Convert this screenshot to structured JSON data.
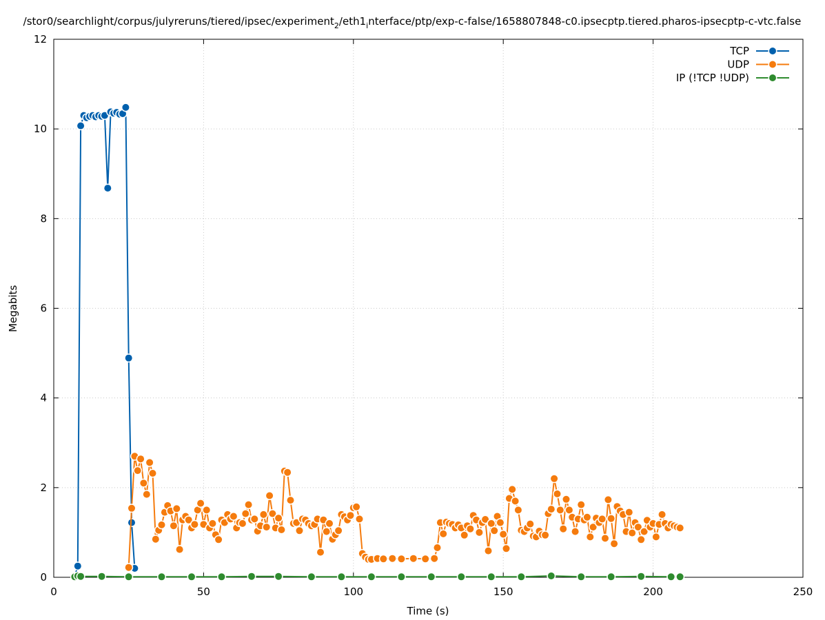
{
  "chart_data": {
    "type": "line",
    "title": "/stor0/searchlight/corpus/julyreruns/tiered/ipsec/experiment",
    "title_sub1": "2",
    "title_mid": "/eth1",
    "title_sub2": "i",
    "title_end": "nterface/ptp/exp-c-false/1658807848-c0.ipsecptp.tiered.pharos-ipsecptp-c-vtc.false",
    "xlabel": "Time (s)",
    "ylabel": "Megabits",
    "xlim": [
      0,
      250
    ],
    "ylim": [
      0,
      12
    ],
    "xticks": [
      0,
      50,
      100,
      150,
      200,
      250
    ],
    "yticks": [
      0,
      2,
      4,
      6,
      8,
      10,
      12
    ],
    "grid": true,
    "legend_position": "top-right",
    "series": [
      {
        "name": "TCP",
        "color": "#0060ad",
        "points": [
          [
            7,
            0.02
          ],
          [
            8,
            0.25
          ],
          [
            9,
            10.07
          ],
          [
            10,
            10.3
          ],
          [
            11,
            10.25
          ],
          [
            12,
            10.28
          ],
          [
            13,
            10.3
          ],
          [
            14,
            10.27
          ],
          [
            15,
            10.3
          ],
          [
            16,
            10.28
          ],
          [
            17,
            10.3
          ],
          [
            18,
            8.68
          ],
          [
            19,
            10.38
          ],
          [
            20,
            10.35
          ],
          [
            21,
            10.37
          ],
          [
            22,
            10.33
          ],
          [
            23,
            10.34
          ],
          [
            24,
            10.48
          ],
          [
            25,
            4.89
          ],
          [
            26,
            1.22
          ],
          [
            27,
            0.2
          ]
        ]
      },
      {
        "name": "UDP",
        "color": "#f57b0d",
        "points": [
          [
            25,
            0.22
          ],
          [
            26,
            1.54
          ],
          [
            27,
            2.7
          ],
          [
            28,
            2.38
          ],
          [
            29,
            2.64
          ],
          [
            30,
            2.1
          ],
          [
            31,
            1.85
          ],
          [
            32,
            2.56
          ],
          [
            33,
            2.32
          ],
          [
            34,
            0.85
          ],
          [
            35,
            1.05
          ],
          [
            36,
            1.17
          ],
          [
            37,
            1.45
          ],
          [
            38,
            1.6
          ],
          [
            39,
            1.48
          ],
          [
            40,
            1.15
          ],
          [
            41,
            1.53
          ],
          [
            42,
            0.62
          ],
          [
            43,
            1.28
          ],
          [
            44,
            1.36
          ],
          [
            45,
            1.28
          ],
          [
            46,
            1.1
          ],
          [
            47,
            1.18
          ],
          [
            48,
            1.5
          ],
          [
            49,
            1.65
          ],
          [
            50,
            1.18
          ],
          [
            51,
            1.5
          ],
          [
            52,
            1.1
          ],
          [
            53,
            1.2
          ],
          [
            54,
            0.95
          ],
          [
            55,
            0.84
          ],
          [
            56,
            1.28
          ],
          [
            57,
            1.22
          ],
          [
            58,
            1.4
          ],
          [
            59,
            1.3
          ],
          [
            60,
            1.36
          ],
          [
            61,
            1.1
          ],
          [
            62,
            1.22
          ],
          [
            63,
            1.2
          ],
          [
            64,
            1.42
          ],
          [
            65,
            1.62
          ],
          [
            66,
            1.28
          ],
          [
            67,
            1.3
          ],
          [
            68,
            1.03
          ],
          [
            69,
            1.15
          ],
          [
            70,
            1.4
          ],
          [
            71,
            1.12
          ],
          [
            72,
            1.82
          ],
          [
            73,
            1.42
          ],
          [
            74,
            1.1
          ],
          [
            75,
            1.32
          ],
          [
            76,
            1.06
          ],
          [
            77,
            2.37
          ],
          [
            78,
            2.34
          ],
          [
            79,
            1.72
          ],
          [
            80,
            1.2
          ],
          [
            81,
            1.22
          ],
          [
            82,
            1.04
          ],
          [
            83,
            1.3
          ],
          [
            84,
            1.28
          ],
          [
            85,
            1.2
          ],
          [
            86,
            1.15
          ],
          [
            87,
            1.18
          ],
          [
            88,
            1.3
          ],
          [
            89,
            0.56
          ],
          [
            90,
            1.28
          ],
          [
            91,
            1.02
          ],
          [
            92,
            1.2
          ],
          [
            93,
            0.85
          ],
          [
            94,
            0.95
          ],
          [
            95,
            1.04
          ],
          [
            96,
            1.4
          ],
          [
            97,
            1.35
          ],
          [
            98,
            1.28
          ],
          [
            99,
            1.38
          ],
          [
            100,
            1.55
          ],
          [
            101,
            1.57
          ],
          [
            102,
            1.3
          ],
          [
            103,
            0.53
          ],
          [
            104,
            0.45
          ],
          [
            105,
            0.4
          ],
          [
            106,
            0.4
          ],
          [
            108,
            0.42
          ],
          [
            110,
            0.41
          ],
          [
            113,
            0.42
          ],
          [
            116,
            0.41
          ],
          [
            120,
            0.42
          ],
          [
            124,
            0.41
          ],
          [
            127,
            0.42
          ],
          [
            128,
            0.66
          ],
          [
            129,
            1.22
          ],
          [
            130,
            0.97
          ],
          [
            131,
            1.23
          ],
          [
            132,
            1.2
          ],
          [
            133,
            1.18
          ],
          [
            134,
            1.1
          ],
          [
            135,
            1.17
          ],
          [
            136,
            1.1
          ],
          [
            137,
            0.94
          ],
          [
            138,
            1.15
          ],
          [
            139,
            1.08
          ],
          [
            140,
            1.38
          ],
          [
            141,
            1.28
          ],
          [
            142,
            1.0
          ],
          [
            143,
            1.22
          ],
          [
            144,
            1.29
          ],
          [
            145,
            0.59
          ],
          [
            146,
            1.2
          ],
          [
            147,
            1.04
          ],
          [
            148,
            1.36
          ],
          [
            149,
            1.22
          ],
          [
            150,
            0.96
          ],
          [
            151,
            0.64
          ],
          [
            152,
            1.76
          ],
          [
            153,
            1.96
          ],
          [
            154,
            1.7
          ],
          [
            155,
            1.5
          ],
          [
            156,
            1.05
          ],
          [
            157,
            1.02
          ],
          [
            158,
            1.1
          ],
          [
            159,
            1.19
          ],
          [
            160,
            0.92
          ],
          [
            161,
            0.9
          ],
          [
            162,
            1.03
          ],
          [
            163,
            0.95
          ],
          [
            164,
            0.94
          ],
          [
            165,
            1.42
          ],
          [
            166,
            1.52
          ],
          [
            167,
            2.2
          ],
          [
            168,
            1.86
          ],
          [
            169,
            1.5
          ],
          [
            170,
            1.08
          ],
          [
            171,
            1.74
          ],
          [
            172,
            1.5
          ],
          [
            173,
            1.34
          ],
          [
            174,
            1.02
          ],
          [
            175,
            1.3
          ],
          [
            176,
            1.62
          ],
          [
            177,
            1.28
          ],
          [
            178,
            1.34
          ],
          [
            179,
            0.9
          ],
          [
            180,
            1.12
          ],
          [
            181,
            1.32
          ],
          [
            182,
            1.22
          ],
          [
            183,
            1.3
          ],
          [
            184,
            0.87
          ],
          [
            185,
            1.73
          ],
          [
            186,
            1.31
          ],
          [
            187,
            0.75
          ],
          [
            188,
            1.58
          ],
          [
            189,
            1.48
          ],
          [
            190,
            1.4
          ],
          [
            191,
            1.02
          ],
          [
            192,
            1.45
          ],
          [
            193,
            0.99
          ],
          [
            194,
            1.22
          ],
          [
            195,
            1.12
          ],
          [
            196,
            0.84
          ],
          [
            197,
            1.02
          ],
          [
            198,
            1.27
          ],
          [
            199,
            1.12
          ],
          [
            200,
            1.2
          ],
          [
            201,
            0.9
          ],
          [
            202,
            1.18
          ],
          [
            203,
            1.4
          ],
          [
            204,
            1.2
          ],
          [
            205,
            1.1
          ],
          [
            206,
            1.18
          ],
          [
            207,
            1.15
          ],
          [
            208,
            1.12
          ],
          [
            209,
            1.1
          ]
        ]
      },
      {
        "name": "IP (!TCP  !UDP)",
        "color": "#2e8b2e",
        "points": [
          [
            7,
            0.01
          ],
          [
            8,
            0.03
          ],
          [
            9,
            0.02
          ],
          [
            16,
            0.02
          ],
          [
            25,
            0.01
          ],
          [
            36,
            0.01
          ],
          [
            46,
            0.01
          ],
          [
            56,
            0.01
          ],
          [
            66,
            0.02
          ],
          [
            75,
            0.02
          ],
          [
            86,
            0.01
          ],
          [
            96,
            0.01
          ],
          [
            106,
            0.01
          ],
          [
            116,
            0.01
          ],
          [
            126,
            0.01
          ],
          [
            136,
            0.01
          ],
          [
            146,
            0.01
          ],
          [
            156,
            0.01
          ],
          [
            166,
            0.03
          ],
          [
            176,
            0.01
          ],
          [
            186,
            0.01
          ],
          [
            196,
            0.02
          ],
          [
            206,
            0.01
          ],
          [
            209,
            0.01
          ]
        ]
      }
    ]
  }
}
